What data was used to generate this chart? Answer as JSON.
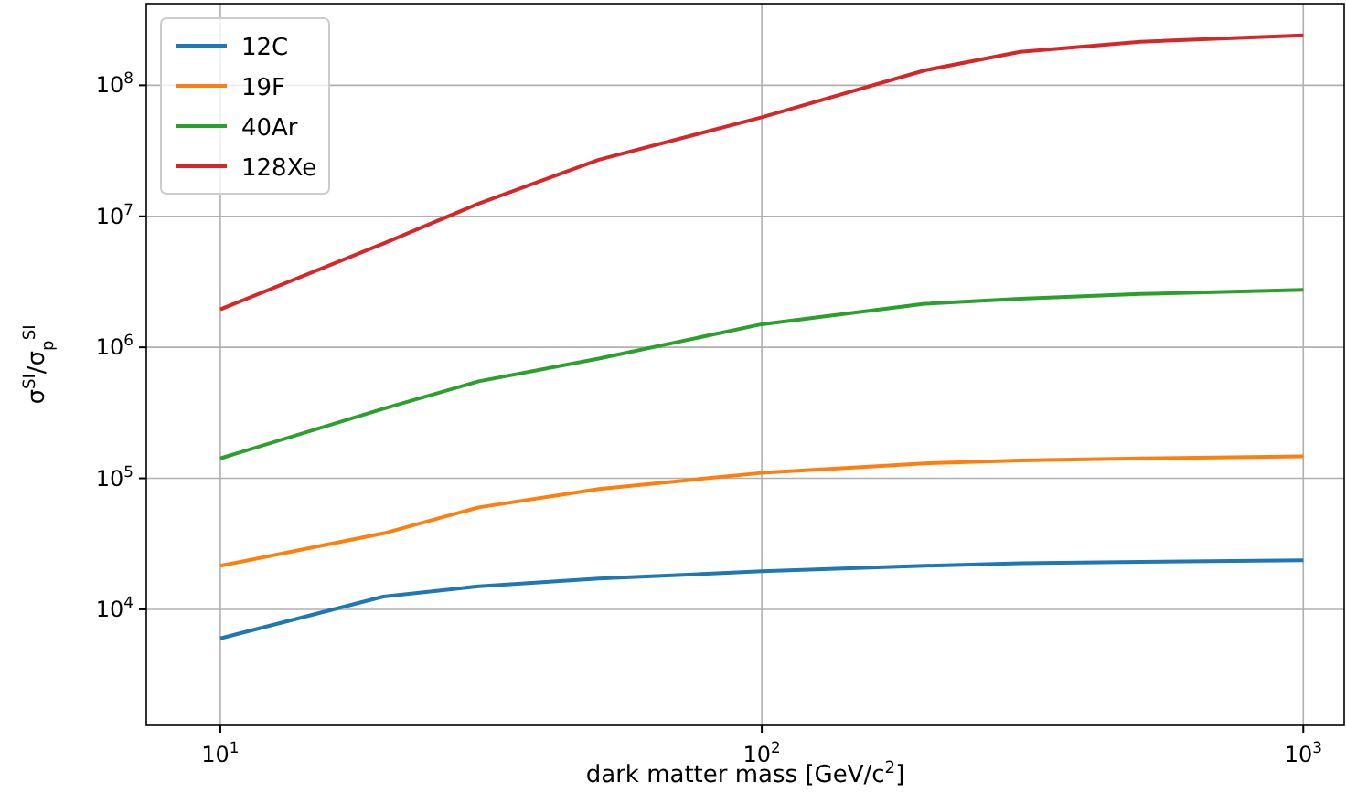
{
  "chart_data": {
    "type": "line",
    "xlabel": "dark matter mass [GeV/c$^{2}$]",
    "ylabel": "σ$^{SI}$/σ$_{p}$$^{SI}$",
    "log": "xy",
    "grid": true,
    "legend": "top left",
    "marker": "none",
    "line_style": "solid",
    "xlim": [
      7.3,
      1190
    ],
    "ylim": [
      1300,
      420000000
    ],
    "xticks": [
      {
        "value": 10,
        "label": "10$^{1}$"
      },
      {
        "value": 100,
        "label": "10$^{2}$"
      },
      {
        "value": 1000,
        "label": "10$^{3}$"
      }
    ],
    "yticks": [
      {
        "value": 10000,
        "label": "10$^{4}$"
      },
      {
        "value": 100000,
        "label": "10$^{5}$"
      },
      {
        "value": 1000000,
        "label": "10$^{6}$"
      },
      {
        "value": 10000000,
        "label": "10$^{7}$"
      },
      {
        "value": 100000000,
        "label": "10$^{8}$"
      }
    ],
    "x": [
      10,
      20,
      30,
      50,
      100,
      200,
      300,
      500,
      1000
    ],
    "series": [
      {
        "name": "12C",
        "color": "#1f77b4",
        "values": [
          6000,
          12500,
          15000,
          17200,
          19500,
          21500,
          22500,
          23000,
          23700
        ]
      },
      {
        "name": "19F",
        "color": "#ff7f0e",
        "values": [
          21500,
          38000,
          60000,
          83000,
          110000,
          130000,
          137000,
          142000,
          147000
        ]
      },
      {
        "name": "40Ar",
        "color": "#2ca02c",
        "values": [
          142000,
          340000,
          550000,
          820000,
          1500000,
          2150000,
          2350000,
          2550000,
          2750000
        ]
      },
      {
        "name": "128Xe",
        "color": "#d62728",
        "values": [
          1950000,
          6200000,
          12500000,
          27000000,
          57000000,
          130000000,
          180000000,
          215000000,
          240000000
        ]
      }
    ]
  }
}
